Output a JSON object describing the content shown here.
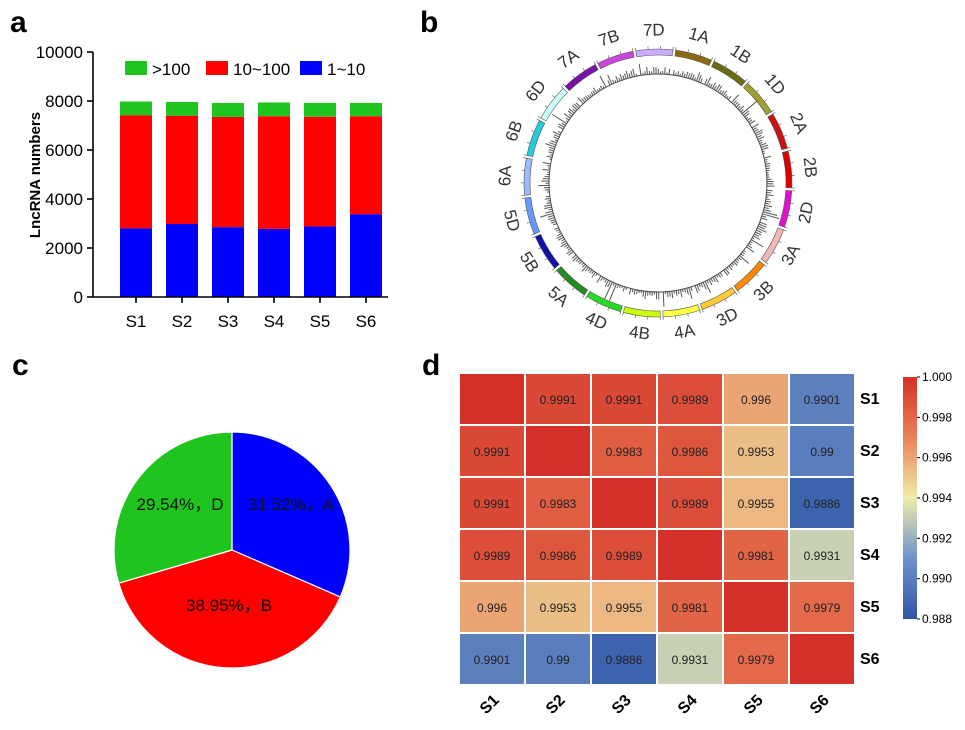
{
  "panel_labels": {
    "a": "a",
    "b": "b",
    "c": "c",
    "d": "d"
  },
  "colors": {
    "green": "#1fc41f",
    "red": "#ff0000",
    "blue": "#0000ff"
  },
  "chart_data": [
    {
      "panel": "a",
      "type": "bar",
      "stacked": true,
      "categories": [
        "S1",
        "S2",
        "S3",
        "S4",
        "S5",
        "S6"
      ],
      "series": [
        {
          "name": "1~10",
          "color": "#0000ff",
          "values": [
            2800,
            2980,
            2850,
            2780,
            2880,
            3380
          ]
        },
        {
          "name": "10~100",
          "color": "#ff0000",
          "values": [
            4620,
            4420,
            4500,
            4600,
            4480,
            4000
          ]
        },
        {
          "name": ">100",
          "color": "#1fc41f",
          "values": [
            560,
            560,
            570,
            560,
            560,
            540
          ]
        }
      ],
      "legend_order": [
        ">100",
        "10~100",
        "1~10"
      ],
      "legend_position": "top",
      "ylabel": "LncRNA numbers",
      "ylim": [
        0,
        10000
      ],
      "yticks": [
        "0",
        "2000",
        "4000",
        "6000",
        "8000",
        "10000"
      ]
    },
    {
      "panel": "b",
      "type": "circos",
      "chromosomes": [
        {
          "name": "1A",
          "color": "#8b6914"
        },
        {
          "name": "1B",
          "color": "#6b6b14"
        },
        {
          "name": "1D",
          "color": "#a0a030"
        },
        {
          "name": "2A",
          "color": "#cc1111"
        },
        {
          "name": "2B",
          "color": "#dd0000"
        },
        {
          "name": "2D",
          "color": "#e010d0"
        },
        {
          "name": "3A",
          "color": "#f2b8b8"
        },
        {
          "name": "3B",
          "color": "#ff8800"
        },
        {
          "name": "3D",
          "color": "#ffcc33"
        },
        {
          "name": "4A",
          "color": "#ffff44"
        },
        {
          "name": "4B",
          "color": "#ccff00"
        },
        {
          "name": "4D",
          "color": "#22dd22"
        },
        {
          "name": "5A",
          "color": "#228b22"
        },
        {
          "name": "5B",
          "color": "#1111aa"
        },
        {
          "name": "5D",
          "color": "#6699ff"
        },
        {
          "name": "6A",
          "color": "#99bbff"
        },
        {
          "name": "6B",
          "color": "#22ccdd"
        },
        {
          "name": "6D",
          "color": "#ccffff"
        },
        {
          "name": "7A",
          "color": "#7711aa"
        },
        {
          "name": "7B",
          "color": "#cc44dd"
        },
        {
          "name": "7D",
          "color": "#ccaaff"
        }
      ]
    },
    {
      "panel": "c",
      "type": "pie",
      "slices": [
        {
          "label": "A",
          "value": 31.52,
          "text": "31.52%，A",
          "color": "#0000ff"
        },
        {
          "label": "B",
          "value": 38.95,
          "text": "38.95%，B",
          "color": "#ff0000"
        },
        {
          "label": "D",
          "value": 29.54,
          "text": "29.54%，D",
          "color": "#1fc41f"
        }
      ]
    },
    {
      "panel": "d",
      "type": "heatmap",
      "rows": [
        "S1",
        "S2",
        "S3",
        "S4",
        "S5",
        "S6"
      ],
      "cols": [
        "S1",
        "S2",
        "S3",
        "S4",
        "S5",
        "S6"
      ],
      "values": [
        [
          1.0,
          0.9991,
          0.9991,
          0.9989,
          0.996,
          0.9901
        ],
        [
          0.9991,
          1.0,
          0.9983,
          0.9986,
          0.9953,
          0.99
        ],
        [
          0.9991,
          0.9983,
          1.0,
          0.9989,
          0.9955,
          0.9886
        ],
        [
          0.9989,
          0.9986,
          0.9989,
          1.0,
          0.9981,
          0.9931
        ],
        [
          0.996,
          0.9953,
          0.9955,
          0.9981,
          1.0,
          0.9979
        ],
        [
          0.9901,
          0.99,
          0.9886,
          0.9931,
          0.9979,
          1.0
        ]
      ],
      "show_diagonal_labels": false,
      "colorbar_range": [
        0.988,
        1.0
      ],
      "colorbar_ticks": [
        "1.000",
        "0.998",
        "0.996",
        "0.994",
        "0.992",
        "0.990",
        "0.988"
      ]
    }
  ]
}
